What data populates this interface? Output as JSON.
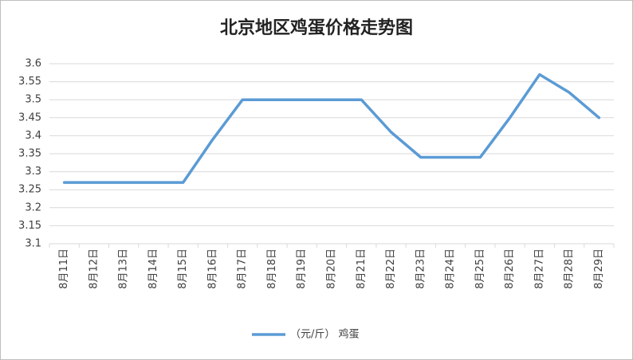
{
  "chart_data": {
    "type": "line",
    "title": "北京地区鸡蛋价格走势图",
    "categories": [
      "8月11日",
      "8月12日",
      "8月13日",
      "8月14日",
      "8月15日",
      "8月16日",
      "8月17日",
      "8月18日",
      "8月19日",
      "8月20日",
      "8月21日",
      "8月22日",
      "8月23日",
      "8月24日",
      "8月25日",
      "8月26日",
      "8月27日",
      "8月28日",
      "8月29日"
    ],
    "series": [
      {
        "name": "（元/斤） 鸡蛋",
        "color": "#5b9bd5",
        "values": [
          3.27,
          3.27,
          3.27,
          3.27,
          3.27,
          3.39,
          3.5,
          3.5,
          3.5,
          3.5,
          3.5,
          3.41,
          3.34,
          3.34,
          3.34,
          3.45,
          3.57,
          3.52,
          3.45
        ]
      }
    ],
    "ylim": [
      3.1,
      3.6
    ],
    "yticks": [
      3.1,
      3.15,
      3.2,
      3.25,
      3.3,
      3.35,
      3.4,
      3.45,
      3.5,
      3.55,
      3.6
    ],
    "grid": true,
    "legend": "bottom"
  }
}
